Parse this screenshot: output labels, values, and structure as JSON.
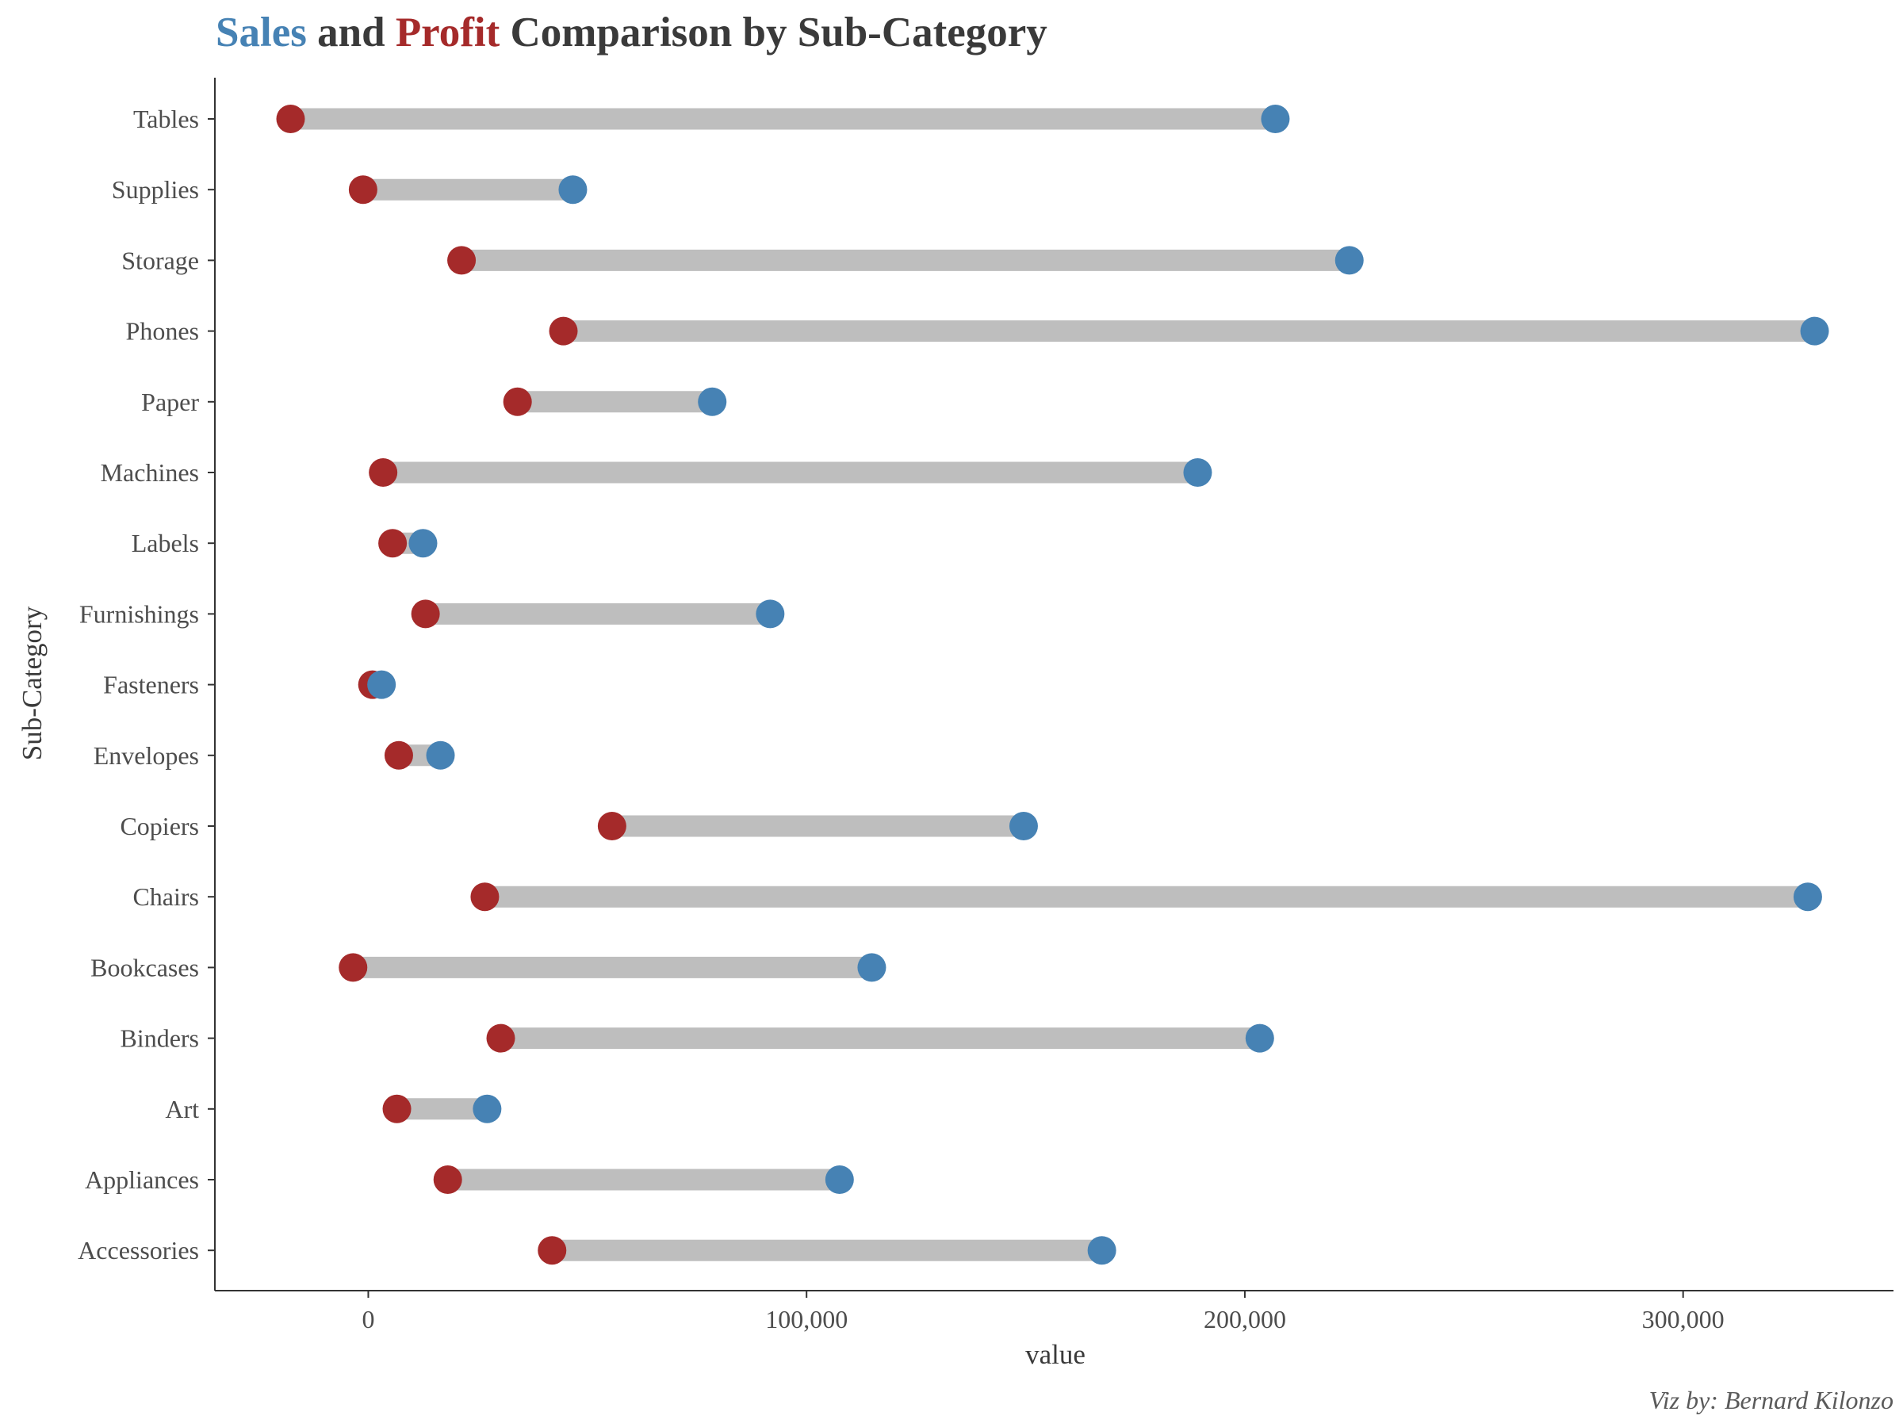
{
  "chart_data": {
    "type": "dumbbell",
    "title_parts": [
      {
        "text": "Sales",
        "color": "#4682b4"
      },
      {
        "text": " and ",
        "color": "#3a3a3a"
      },
      {
        "text": "Profit",
        "color": "#a52a2a"
      },
      {
        "text": " Comparison by Sub-Category",
        "color": "#3a3a3a"
      }
    ],
    "xlabel": "value",
    "ylabel": "Sub-Category",
    "xlim": [
      -35000,
      348000
    ],
    "x_ticks": [
      0,
      100000,
      200000,
      300000
    ],
    "x_tick_labels": [
      "0",
      "100,000",
      "200,000",
      "300,000"
    ],
    "categories": [
      "Tables",
      "Supplies",
      "Storage",
      "Phones",
      "Paper",
      "Machines",
      "Labels",
      "Furnishings",
      "Fasteners",
      "Envelopes",
      "Copiers",
      "Chairs",
      "Bookcases",
      "Binders",
      "Art",
      "Appliances",
      "Accessories"
    ],
    "series": [
      {
        "name": "Sales",
        "color": "#4682b4",
        "values": [
          206966,
          46674,
          223844,
          330007,
          78479,
          189239,
          12486,
          91705,
          3024,
          16476,
          149528,
          328449,
          114880,
          203413,
          27119,
          107532,
          167380
        ]
      },
      {
        "name": "Profit",
        "color": "#a52a2a",
        "values": [
          -17725,
          -1189,
          21279,
          44516,
          34054,
          3385,
          5546,
          13059,
          950,
          6964,
          55618,
          26590,
          -3473,
          30222,
          6528,
          18138,
          41937
        ]
      }
    ],
    "segment_color": "#bebebe",
    "grid": false
  },
  "caption": "Viz by: Bernard Kilonzo"
}
